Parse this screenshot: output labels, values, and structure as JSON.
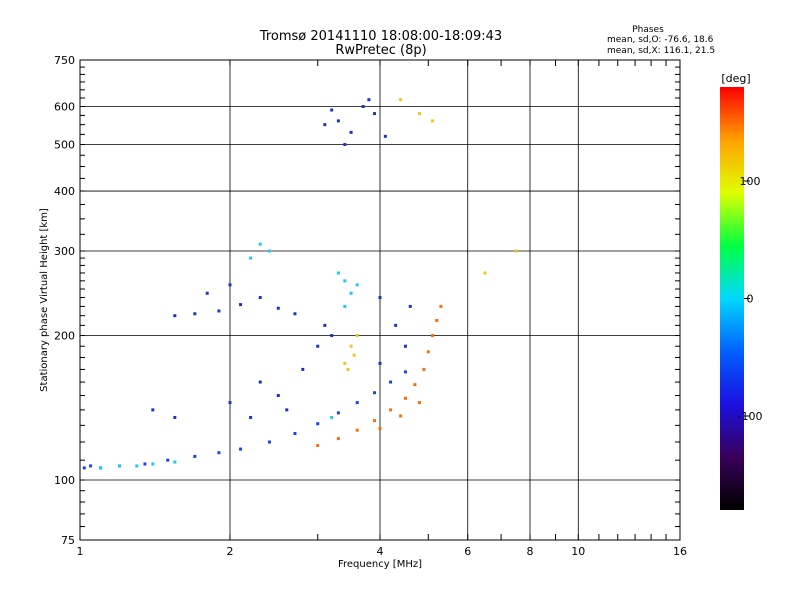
{
  "figure": {
    "title_line1": "Tromsø 20141110 18:08:00-18:09:43",
    "title_line2": "RwPretec (8p)",
    "stats_heading": "Phases",
    "stats_line1": "mean, sd,O: -76.6, 18.6",
    "stats_line2": "mean, sd,X: 116.1, 21.5"
  },
  "chart_data": {
    "type": "scatter",
    "xlabel": "Frequency [MHz]",
    "ylabel": "Stationary phase Virtual Height [km]",
    "x_scale": "log",
    "y_scale": "log",
    "xlim": [
      1,
      16
    ],
    "ylim": [
      75,
      750
    ],
    "x_ticks": [
      1,
      2,
      4,
      6,
      8,
      10,
      16
    ],
    "x_tick_labels": [
      "1",
      "2",
      "4",
      "6",
      "8",
      "10",
      "16"
    ],
    "y_ticks": [
      75,
      100,
      200,
      300,
      400,
      500,
      600,
      750
    ],
    "y_tick_labels": [
      "75",
      "100",
      "200",
      "300",
      "400",
      "500",
      "600",
      "750"
    ],
    "grid": true,
    "colorbar": {
      "label": "[deg]",
      "range": [
        -180,
        180
      ],
      "ticks": [
        100,
        0,
        -100
      ],
      "tick_labels": [
        "100",
        "0",
        "-100"
      ],
      "colormap": [
        "#000000",
        "#3a005a",
        "#1a10e0",
        "#0060ff",
        "#00d8ff",
        "#00ff40",
        "#e0ff00",
        "#ffa000",
        "#ff0000"
      ]
    },
    "series": [
      {
        "color": "#1a40f0",
        "points": [
          [
            1.02,
            106
          ],
          [
            1.05,
            107
          ],
          [
            1.1,
            106
          ],
          [
            1.2,
            107
          ],
          [
            1.35,
            108
          ],
          [
            1.5,
            110
          ],
          [
            1.7,
            112
          ],
          [
            1.9,
            114
          ],
          [
            2.1,
            116
          ],
          [
            2.4,
            120
          ],
          [
            2.7,
            125
          ],
          [
            3.0,
            131
          ],
          [
            3.3,
            138
          ],
          [
            3.6,
            145
          ],
          [
            3.9,
            152
          ],
          [
            4.2,
            160
          ],
          [
            4.5,
            168
          ]
        ]
      },
      {
        "color": "#20c8f0",
        "points": [
          [
            1.1,
            106
          ],
          [
            1.2,
            107
          ],
          [
            1.3,
            107
          ],
          [
            1.4,
            108
          ],
          [
            1.55,
            109
          ],
          [
            3.2,
            135
          ],
          [
            3.4,
            260
          ],
          [
            3.5,
            245
          ],
          [
            3.6,
            255
          ],
          [
            3.4,
            230
          ],
          [
            3.3,
            270
          ],
          [
            2.4,
            300
          ],
          [
            2.3,
            310
          ],
          [
            2.2,
            290
          ]
        ]
      },
      {
        "color": "#f07010",
        "points": [
          [
            3.0,
            118
          ],
          [
            3.3,
            122
          ],
          [
            3.6,
            127
          ],
          [
            3.9,
            133
          ],
          [
            4.2,
            140
          ],
          [
            4.5,
            148
          ],
          [
            4.7,
            158
          ],
          [
            4.9,
            170
          ],
          [
            5.0,
            185
          ],
          [
            5.1,
            200
          ],
          [
            5.2,
            215
          ],
          [
            5.3,
            230
          ],
          [
            4.0,
            128
          ],
          [
            4.4,
            136
          ],
          [
            4.8,
            145
          ]
        ]
      },
      {
        "color": "#e8c820",
        "points": [
          [
            3.4,
            175
          ],
          [
            3.5,
            190
          ],
          [
            3.6,
            200
          ],
          [
            3.55,
            182
          ],
          [
            3.45,
            170
          ],
          [
            4.8,
            580
          ],
          [
            4.4,
            620
          ],
          [
            5.1,
            560
          ],
          [
            6.5,
            270
          ],
          [
            7.5,
            300
          ]
        ]
      },
      {
        "color": "#2030c0",
        "points": [
          [
            1.55,
            220
          ],
          [
            1.7,
            222
          ],
          [
            1.9,
            225
          ],
          [
            2.1,
            232
          ],
          [
            2.3,
            240
          ],
          [
            2.5,
            228
          ],
          [
            2.7,
            222
          ],
          [
            1.8,
            245
          ],
          [
            2.0,
            255
          ],
          [
            3.0,
            190
          ],
          [
            3.1,
            210
          ],
          [
            3.2,
            200
          ],
          [
            3.3,
            560
          ],
          [
            3.5,
            530
          ],
          [
            3.2,
            590
          ],
          [
            3.7,
            600
          ],
          [
            3.9,
            580
          ],
          [
            4.1,
            520
          ],
          [
            3.4,
            500
          ],
          [
            3.8,
            620
          ],
          [
            3.1,
            550
          ],
          [
            2.3,
            160
          ],
          [
            2.5,
            150
          ],
          [
            2.8,
            170
          ],
          [
            2.0,
            145
          ],
          [
            2.2,
            135
          ],
          [
            2.6,
            140
          ],
          [
            4.0,
            240
          ],
          [
            4.3,
            210
          ],
          [
            4.5,
            190
          ],
          [
            4.0,
            175
          ],
          [
            4.6,
            230
          ],
          [
            1.4,
            140
          ],
          [
            1.55,
            135
          ]
        ]
      }
    ]
  }
}
